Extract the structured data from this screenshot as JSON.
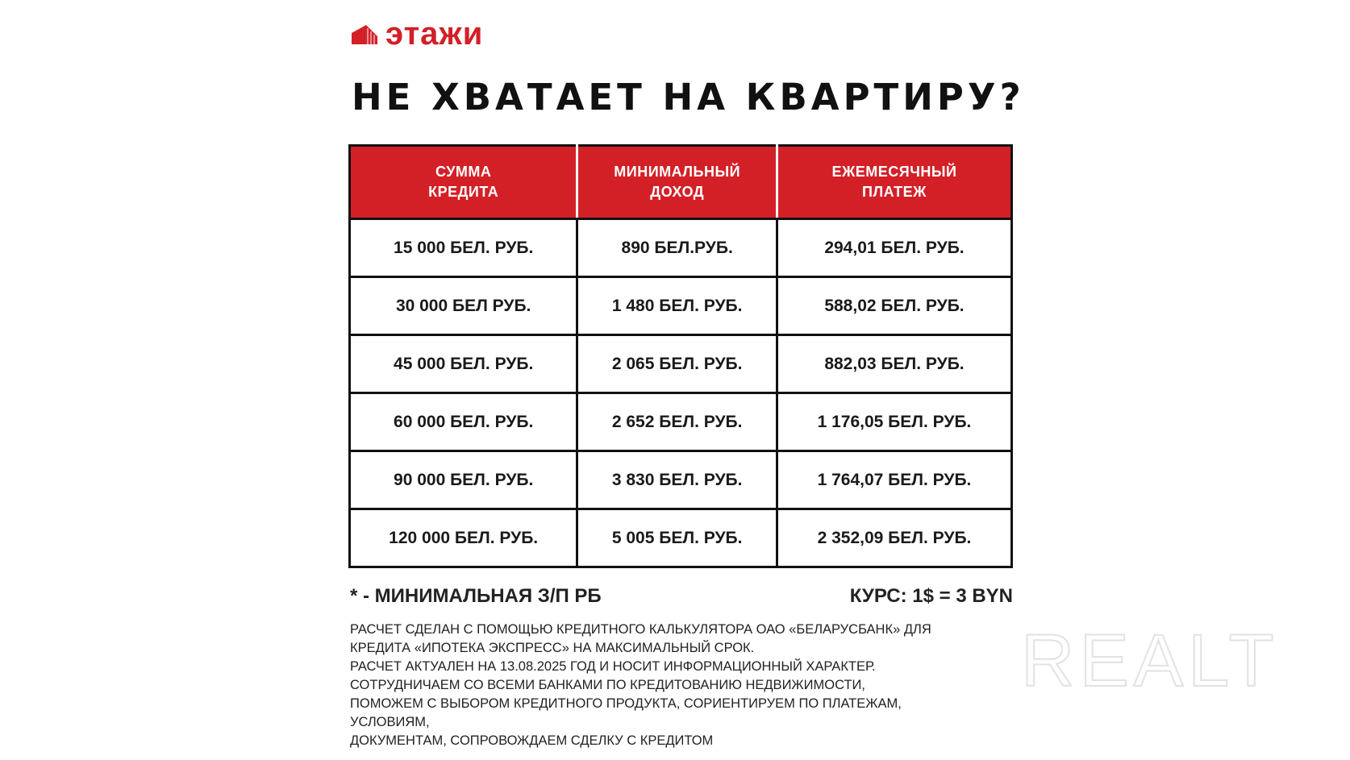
{
  "brand": {
    "name": "этажи",
    "color": "#d32027",
    "icon": "building-logo-icon"
  },
  "title": "НЕ ХВАТАЕТ НА КВАРТИРУ?",
  "table": {
    "headers": [
      "СУММА\nКРЕДИТА",
      "МИНИМАЛЬНЫЙ\nДОХОД",
      "ЕЖЕМЕСЯЧНЫЙ\nПЛАТЕЖ"
    ],
    "rows": [
      [
        "15 000 БЕЛ. РУБ.",
        "890 БЕЛ.РУБ.",
        "294,01 БЕЛ. РУБ."
      ],
      [
        "30 000 БЕЛ РУБ.",
        "1 480 БЕЛ. РУБ.",
        "588,02 БЕЛ. РУБ."
      ],
      [
        "45 000 БЕЛ. РУБ.",
        "2 065 БЕЛ. РУБ.",
        "882,03 БЕЛ. РУБ."
      ],
      [
        "60 000 БЕЛ. РУБ.",
        "2 652 БЕЛ. РУБ.",
        "1 176,05 БЕЛ. РУБ."
      ],
      [
        "90 000 БЕЛ. РУБ.",
        "3 830 БЕЛ. РУБ.",
        "1 764,07 БЕЛ. РУБ."
      ],
      [
        "120 000 БЕЛ. РУБ.",
        "5 005 БЕЛ. РУБ.",
        "2 352,09 БЕЛ. РУБ."
      ]
    ]
  },
  "footnote": "* - МИНИМАЛЬНАЯ З/П РБ",
  "rate": "КУРС: 1$ = 3 BYN",
  "disclaimer": [
    "РАСЧЕТ СДЕЛАН С ПОМОЩЬЮ КРЕДИТНОГО КАЛЬКУЛЯТОРА ОАО «БЕЛАРУСБАНК» ДЛЯ",
    "КРЕДИТА «ИПОТЕКА ЭКСПРЕСС» НА МАКСИМАЛЬНЫЙ СРОК.",
    "РАСЧЕТ АКТУАЛЕН НА 13.08.2025 ГОД И НОСИТ ИНФОРМАЦИОННЫЙ ХАРАКТЕР.",
    "СОТРУДНИЧАЕМ СО ВСЕМИ БАНКАМИ ПО КРЕДИТОВАНИЮ НЕДВИЖИМОСТИ,",
    "ПОМОЖЕМ С ВЫБОРОМ КРЕДИТНОГО ПРОДУКТА, СОРИЕНТИРУЕМ ПО ПЛАТЕЖАМ,",
    "УСЛОВИЯМ,",
    "ДОКУМЕНТАМ, СОПРОВОЖДАЕМ СДЕЛКУ С КРЕДИТОМ"
  ],
  "watermark": "REaLT"
}
